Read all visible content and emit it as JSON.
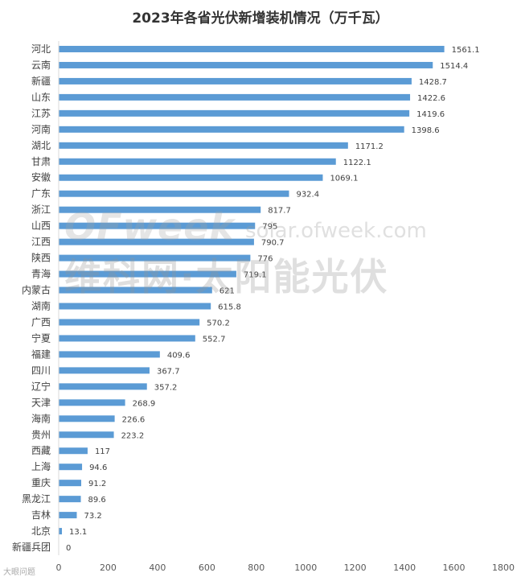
{
  "chart_data": {
    "type": "bar",
    "orientation": "horizontal",
    "title": "2023年各省光伏新增装机情况（万千瓦）",
    "categories": [
      "河北",
      "云南",
      "新疆",
      "山东",
      "江苏",
      "河南",
      "湖北",
      "甘肃",
      "安徽",
      "广东",
      "浙江",
      "山西",
      "江西",
      "陕西",
      "青海",
      "内蒙古",
      "湖南",
      "广西",
      "宁夏",
      "福建",
      "四川",
      "辽宁",
      "天津",
      "海南",
      "贵州",
      "西藏",
      "上海",
      "重庆",
      "黑龙江",
      "吉林",
      "北京",
      "新疆兵团"
    ],
    "values": [
      1561.1,
      1514.4,
      1428.7,
      1422.6,
      1419.6,
      1398.6,
      1171.2,
      1122.1,
      1069.1,
      932.4,
      817.7,
      795,
      790.7,
      776,
      719.1,
      621,
      615.8,
      570.2,
      552.7,
      409.6,
      367.7,
      357.2,
      268.9,
      226.6,
      223.2,
      117,
      94.6,
      91.2,
      89.6,
      73.2,
      13.1,
      0
    ],
    "xlim": [
      0,
      1800
    ],
    "xticks": [
      0,
      200,
      400,
      600,
      800,
      1000,
      1200,
      1400,
      1600,
      1800
    ],
    "bar_color": "#5b9bd5",
    "grid": false
  },
  "watermark": {
    "logo": "OFweek",
    "site": "solar.ofweek.com",
    "cn": "维科网·太阳能光伏"
  },
  "source_mark": "大眼问题"
}
